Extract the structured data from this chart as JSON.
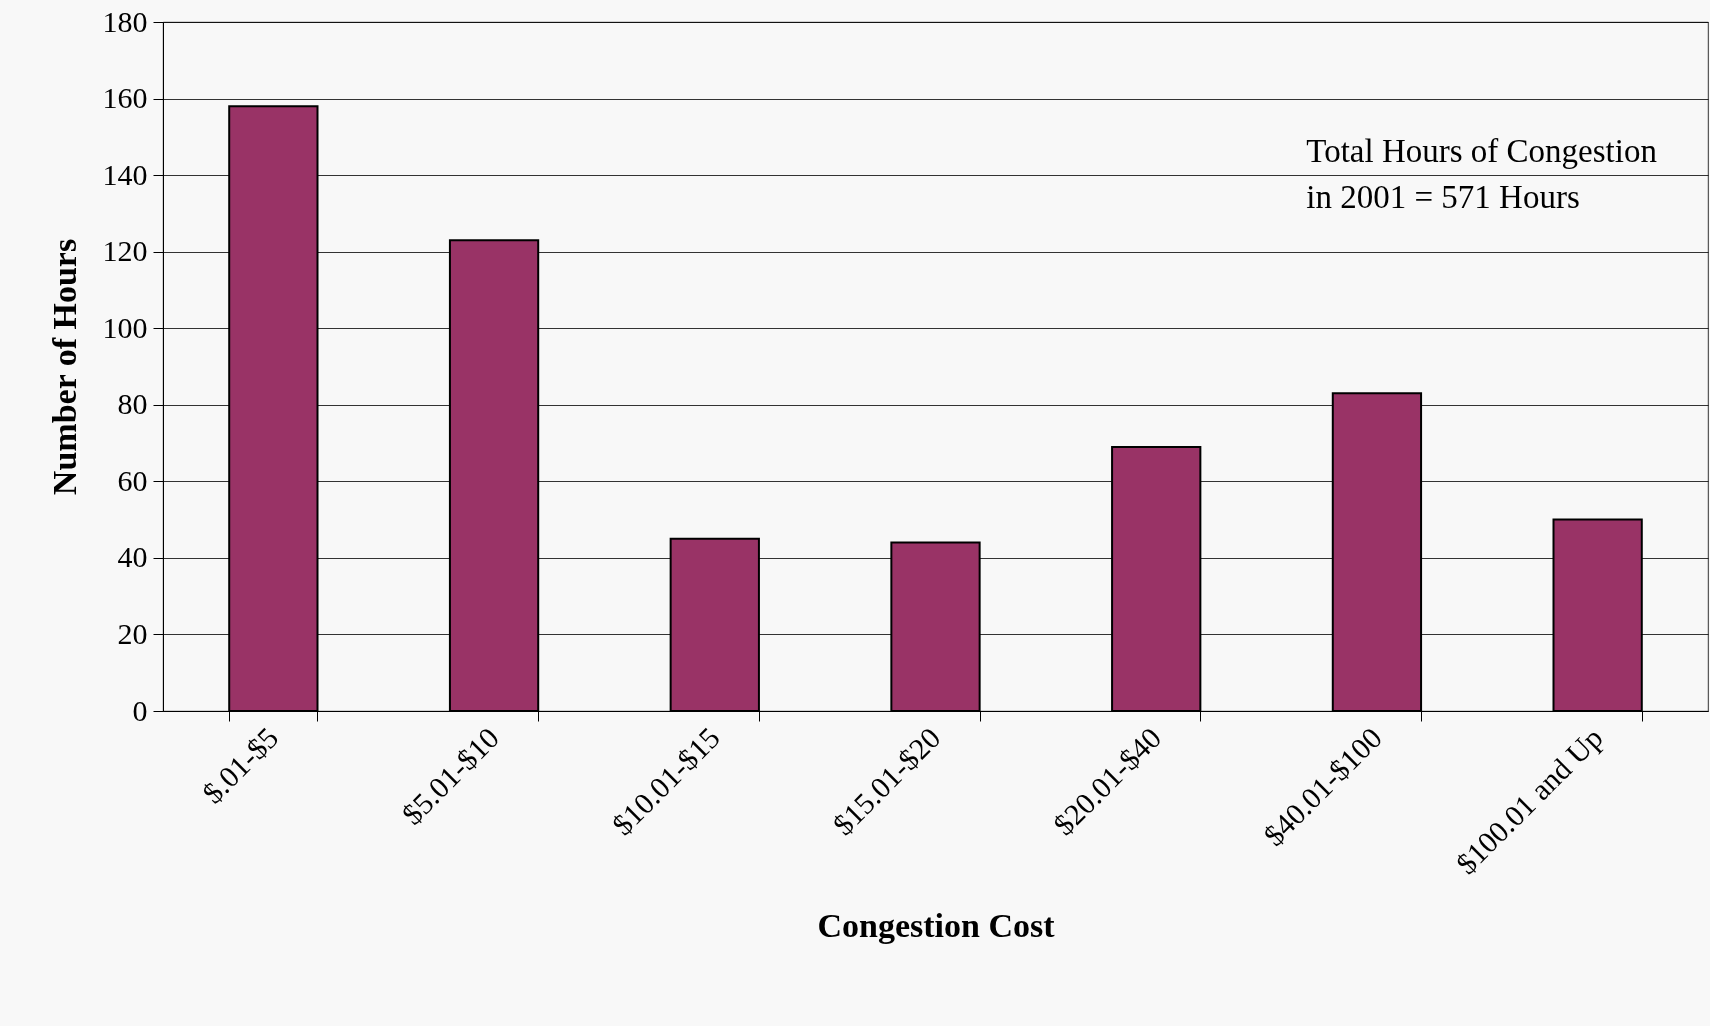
{
  "chart_data": {
    "type": "bar",
    "xlabel": "Congestion Cost",
    "ylabel": "Number of Hours",
    "categories": [
      "$.01-$5",
      "$5.01-$10",
      "$10.01-$15",
      "$15.01-$20",
      "$20.01-$40",
      "$40.01-$100",
      "$100.01 and Up"
    ],
    "values": [
      158,
      123,
      45,
      44,
      69,
      83,
      50
    ],
    "color": "#993366",
    "ylim": [
      0,
      180
    ],
    "yticks": [
      0,
      20,
      40,
      60,
      80,
      100,
      120,
      140,
      160,
      180
    ],
    "grid": "y",
    "annotations": [
      "Total Hours of Congestion\nin 2001 = 571 Hours"
    ]
  }
}
